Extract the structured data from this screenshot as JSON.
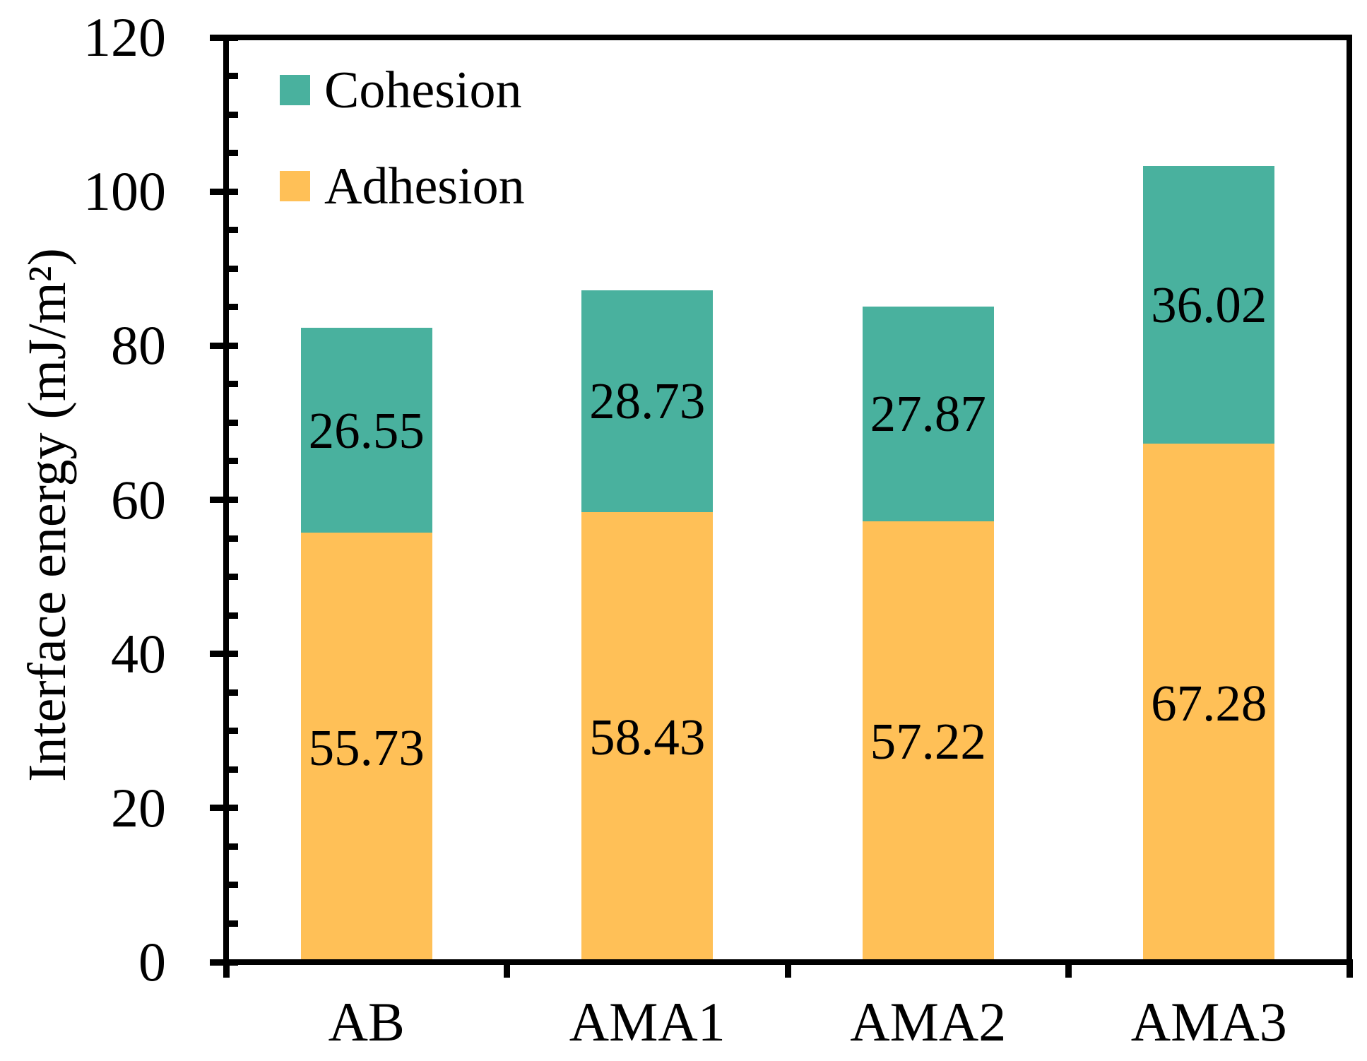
{
  "chart_data": {
    "type": "bar",
    "stacked": true,
    "title": "",
    "xlabel": "",
    "ylabel": "Interface energy (mJ/m²)",
    "categories": [
      "AB",
      "AMA1",
      "AMA2",
      "AMA3"
    ],
    "series": [
      {
        "name": "Adhesion",
        "color": "#ffc057",
        "values": [
          55.73,
          58.43,
          57.22,
          67.28
        ]
      },
      {
        "name": "Cohesion",
        "color": "#49b19e",
        "values": [
          26.55,
          28.73,
          27.87,
          36.02
        ]
      }
    ],
    "bar_value_labels": [
      [
        "55.73",
        "58.43",
        "57.22",
        "67.28"
      ],
      [
        "26.55",
        "28.73",
        "27.87",
        "36.02"
      ]
    ],
    "legend": [
      {
        "label": "Cohesion",
        "color": "#49b19e"
      },
      {
        "label": "Adhesion",
        "color": "#ffc057"
      }
    ],
    "legend_position": "top-left",
    "ylim": [
      0,
      120
    ],
    "y_major_step": 20,
    "y_minor_step": 5,
    "y_tick_labels": [
      "0",
      "20",
      "40",
      "60",
      "80",
      "100",
      "120"
    ],
    "grid": false,
    "axis_color": "#000000",
    "text_color": "#000000",
    "background": "#ffffff"
  }
}
